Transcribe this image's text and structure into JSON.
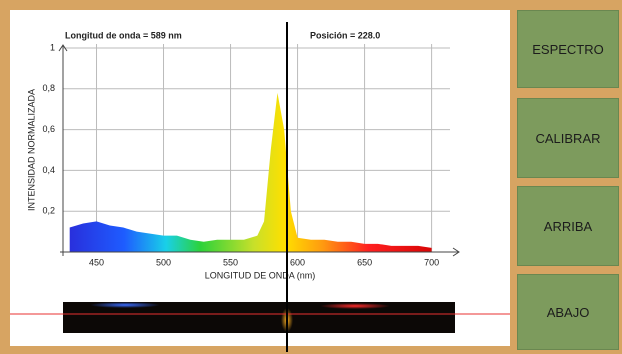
{
  "chart_data": {
    "type": "area",
    "title": "Longitud de onda = 589 nm",
    "subtitle": "Posición = 228.0",
    "x_label": "LONGITUD DE ONDA (nm)",
    "y_label": "INTENSIDAD NORMALIZADA",
    "x": [
      430,
      440,
      450,
      460,
      470,
      480,
      490,
      500,
      510,
      520,
      530,
      540,
      550,
      560,
      570,
      575,
      580,
      585,
      590,
      595,
      600,
      610,
      620,
      630,
      640,
      650,
      660,
      670,
      680,
      690,
      700
    ],
    "values": [
      0.12,
      0.14,
      0.15,
      0.13,
      0.12,
      0.1,
      0.09,
      0.08,
      0.08,
      0.06,
      0.05,
      0.06,
      0.06,
      0.06,
      0.08,
      0.15,
      0.5,
      0.78,
      0.6,
      0.2,
      0.07,
      0.06,
      0.06,
      0.05,
      0.05,
      0.04,
      0.04,
      0.03,
      0.03,
      0.03,
      0.02
    ],
    "xlim": [
      425,
      710
    ],
    "ylim": [
      0,
      1
    ],
    "xticks": [
      450,
      500,
      550,
      600,
      650,
      700
    ],
    "yticks": [
      {
        "value": 0.2,
        "label": "0,2"
      },
      {
        "value": 0.4,
        "label": "0,4"
      },
      {
        "value": 0.6,
        "label": "0,6"
      },
      {
        "value": 0.8,
        "label": "0,8"
      },
      1
    ],
    "grid": true
  },
  "buttons": [
    "ESPECTRO",
    "CALIBRAR",
    "ARRIBA",
    "ABAJO"
  ]
}
